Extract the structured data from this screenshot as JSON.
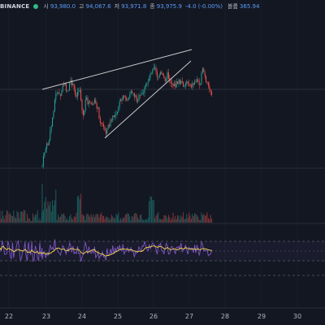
{
  "legend": {
    "exchange": "BINANCE",
    "open_label": "시",
    "open": "93,980.0",
    "high_label": "고",
    "high": "94,067.6",
    "low_label": "저",
    "low": "93,971.8",
    "close_label": "종",
    "close": "93,975.9",
    "change": "-4.0 (-0.00%)",
    "volume_label": "볼륨",
    "volume": "365.94"
  },
  "x_axis": {
    "labels": [
      "22",
      "23",
      "24",
      "25",
      "26",
      "27",
      "28",
      "29",
      "30"
    ]
  },
  "colors": {
    "background": "#131722",
    "up": "#26a69a",
    "down": "#ef5350",
    "rsi_line": "#7e57c2",
    "rsi_ma": "#f7d94c",
    "trendline": "#c8c8c8",
    "price_line": "#5b9cf6"
  },
  "drawings": {
    "trendlines": 2,
    "channel": "rising wedge"
  },
  "chart_data": {
    "type": "candlestick",
    "panes": [
      "price",
      "volume",
      "rsi"
    ],
    "x_labels": [
      "22",
      "23",
      "24",
      "25",
      "26",
      "27",
      "28",
      "29",
      "30"
    ],
    "price": {
      "open": 93980.0,
      "high": 94067.6,
      "low": 93971.8,
      "close": 93975.9,
      "change": -4.0,
      "change_pct": -0.0
    },
    "volume_last": 365.94
  }
}
